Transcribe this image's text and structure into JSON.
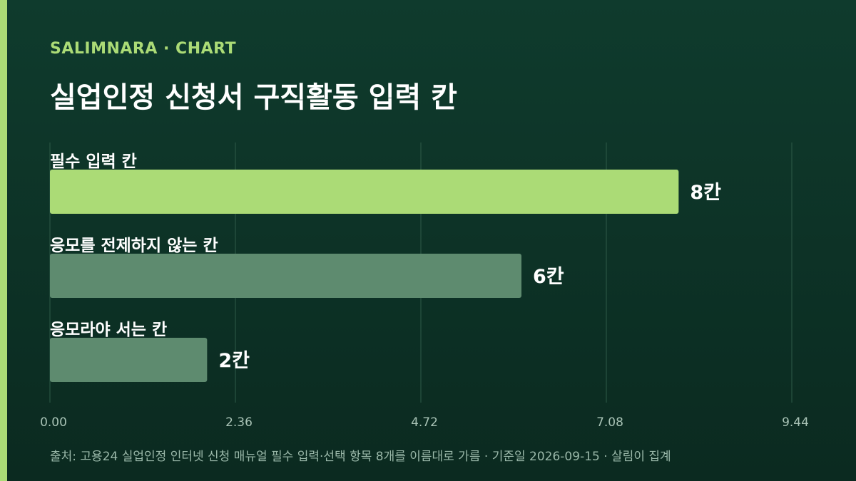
{
  "header": {
    "brand": "SALIMNARA · CHART",
    "title": "실업인정 신청서 구직활동 입력 칸"
  },
  "chart_data": {
    "type": "bar",
    "orientation": "horizontal",
    "title": "실업인정 신청서 구직활동 입력 칸",
    "xlabel": "",
    "ylabel": "",
    "categories": [
      "필수 입력 칸",
      "응모를 전제하지 않는 칸",
      "응모라야 서는 칸"
    ],
    "values": [
      8,
      6,
      2
    ],
    "value_labels": [
      "8칸",
      "6칸",
      "2칸"
    ],
    "highlight_index": 0,
    "xlim": [
      0,
      9.44
    ],
    "x_ticks": [
      0,
      2.36,
      4.72,
      7.08,
      9.44
    ],
    "x_tick_labels": [
      "0.00",
      "2.36",
      "4.72",
      "7.08",
      "9.44"
    ],
    "grid": true,
    "colors": {
      "highlight": "#abdb76",
      "bar": "#5e8b6f",
      "grid": "#2e5a48",
      "tick_text": "#a9c3b6"
    }
  },
  "footer": {
    "source": "출처: 고용24 실업인정 인터넷 신청 매뉴얼 필수 입력·선택 항목 8개를 이름대로 가름 · 기준일 2026-09-15 · 살림이 집계"
  }
}
